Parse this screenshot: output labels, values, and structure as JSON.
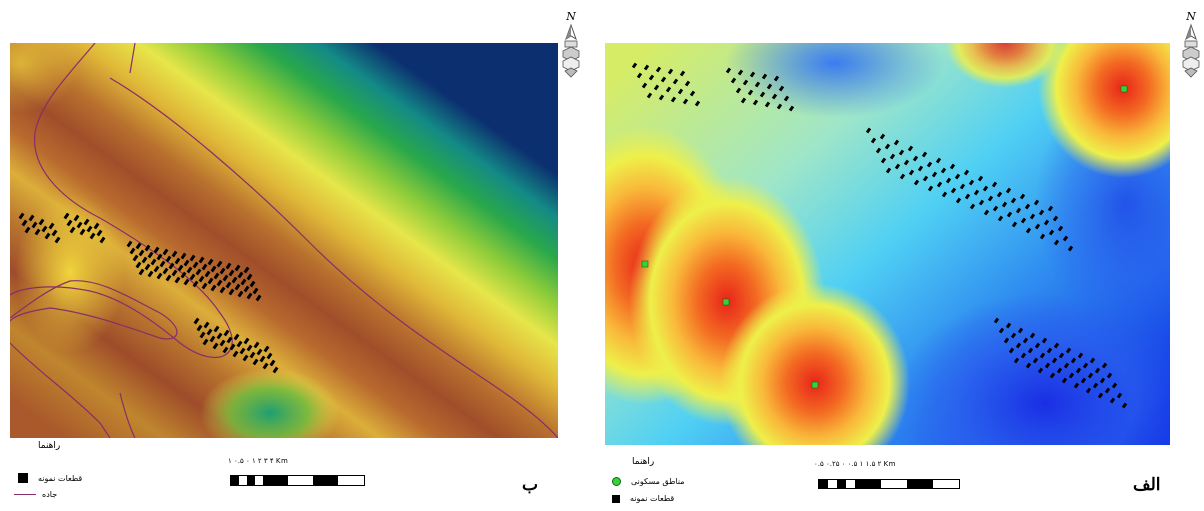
{
  "panel_right": {
    "label": "الف",
    "legend_title": "راهنما",
    "legend_items": [
      {
        "label": "مناطق مسکونی",
        "icon": "green-circle-icon"
      },
      {
        "label": "قطعات نمونه",
        "icon": "black-square-icon"
      }
    ],
    "scale_label": "۰.۵ ۰.۲۵ ۰   ۰.۵   ۱   ۱.۵   ۲ Km",
    "north": "N"
  },
  "panel_left": {
    "label": "ب",
    "legend_title": "راهنما",
    "legend_items": [
      {
        "label": "قطعات نمونه",
        "icon": "black-square-icon"
      },
      {
        "label": "جاده",
        "icon": "purple-line-icon"
      }
    ],
    "scale_label": "۱ ۰.۵ ۰   ۱   ۲   ۳   ۴ Km",
    "north": "N"
  },
  "colors": {
    "hot": "#e8301a",
    "warm": "#f7c23a",
    "cool": "#45c7f0",
    "cold": "#1233e6",
    "terrain_brown": "#a04e2a",
    "terrain_yellow": "#e8e34a",
    "terrain_green": "#2aa84a",
    "terrain_navy": "#0c2f70",
    "road": "#8a2c6a",
    "settlement": "#37d23a"
  }
}
